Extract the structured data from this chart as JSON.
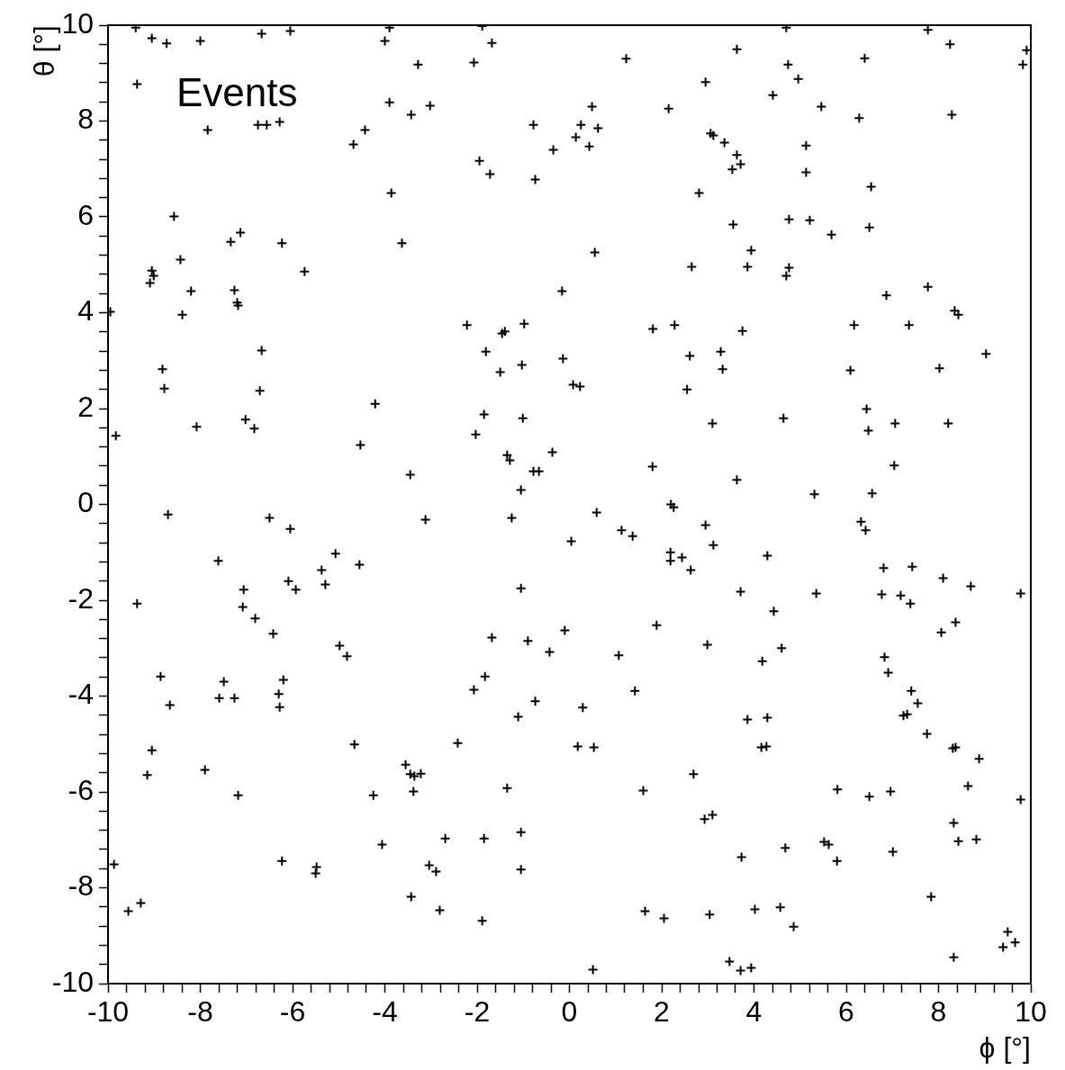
{
  "chart_data": {
    "type": "scatter",
    "title": "Events",
    "xlabel": "ϕ [°]",
    "ylabel": "θ [°]",
    "marker": "cross",
    "grid": false,
    "legend": false,
    "xlim": [
      -10,
      10
    ],
    "ylim": [
      -10,
      10
    ],
    "xticks": [
      -10,
      {
        "value": -9.6,
        "label": null
      },
      {
        "value": -9.2,
        "label": null
      },
      {
        "value": -8.8,
        "label": null
      },
      {
        "value": -8.4,
        "label": null
      },
      -8,
      {
        "value": -7.6,
        "label": null
      },
      {
        "value": -7.2,
        "label": null
      },
      {
        "value": -6.8,
        "label": null
      },
      {
        "value": -6.4,
        "label": null
      },
      -6,
      {
        "value": -5.6,
        "label": null
      },
      {
        "value": -5.2,
        "label": null
      },
      {
        "value": -4.8,
        "label": null
      },
      {
        "value": -4.4,
        "label": null
      },
      -4,
      {
        "value": -3.6,
        "label": null
      },
      {
        "value": -3.2,
        "label": null
      },
      {
        "value": -2.8,
        "label": null
      },
      {
        "value": -2.4,
        "label": null
      },
      -2,
      {
        "value": -1.6,
        "label": null
      },
      {
        "value": -1.2,
        "label": null
      },
      {
        "value": -0.8,
        "label": null
      },
      {
        "value": -0.4,
        "label": null
      },
      0,
      {
        "value": 0.4,
        "label": null
      },
      {
        "value": 0.8,
        "label": null
      },
      {
        "value": 1.2,
        "label": null
      },
      {
        "value": 1.6,
        "label": null
      },
      2,
      {
        "value": 2.4,
        "label": null
      },
      {
        "value": 2.8,
        "label": null
      },
      {
        "value": 3.2,
        "label": null
      },
      {
        "value": 3.6,
        "label": null
      },
      4,
      {
        "value": 4.4,
        "label": null
      },
      {
        "value": 4.8,
        "label": null
      },
      {
        "value": 5.2,
        "label": null
      },
      {
        "value": 5.6,
        "label": null
      },
      6,
      {
        "value": 6.4,
        "label": null
      },
      {
        "value": 6.8,
        "label": null
      },
      {
        "value": 7.2,
        "label": null
      },
      {
        "value": 7.6,
        "label": null
      },
      8,
      {
        "value": 8.4,
        "label": null
      },
      {
        "value": 8.8,
        "label": null
      },
      {
        "value": 9.2,
        "label": null
      },
      {
        "value": 9.6,
        "label": null
      },
      10
    ],
    "yticks": [
      -10,
      {
        "value": -9.6,
        "label": null
      },
      {
        "value": -9.2,
        "label": null
      },
      {
        "value": -8.8,
        "label": null
      },
      {
        "value": -8.4,
        "label": null
      },
      -8,
      {
        "value": -7.6,
        "label": null
      },
      {
        "value": -7.2,
        "label": null
      },
      {
        "value": -6.8,
        "label": null
      },
      {
        "value": -6.4,
        "label": null
      },
      -6,
      {
        "value": -5.6,
        "label": null
      },
      {
        "value": -5.2,
        "label": null
      },
      {
        "value": -4.8,
        "label": null
      },
      {
        "value": -4.4,
        "label": null
      },
      -4,
      {
        "value": -3.6,
        "label": null
      },
      {
        "value": -3.2,
        "label": null
      },
      {
        "value": -2.8,
        "label": null
      },
      {
        "value": -2.4,
        "label": null
      },
      -2,
      {
        "value": -1.6,
        "label": null
      },
      {
        "value": -1.2,
        "label": null
      },
      {
        "value": -0.8,
        "label": null
      },
      {
        "value": -0.4,
        "label": null
      },
      0,
      {
        "value": 0.4,
        "label": null
      },
      {
        "value": 0.8,
        "label": null
      },
      {
        "value": 1.2,
        "label": null
      },
      {
        "value": 1.6,
        "label": null
      },
      2,
      {
        "value": 2.4,
        "label": null
      },
      {
        "value": 2.8,
        "label": null
      },
      {
        "value": 3.2,
        "label": null
      },
      {
        "value": 3.6,
        "label": null
      },
      4,
      {
        "value": 4.4,
        "label": null
      },
      {
        "value": 4.8,
        "label": null
      },
      {
        "value": 5.2,
        "label": null
      },
      {
        "value": 5.6,
        "label": null
      },
      6,
      {
        "value": 6.4,
        "label": null
      },
      {
        "value": 6.8,
        "label": null
      },
      {
        "value": 7.2,
        "label": null
      },
      {
        "value": 7.6,
        "label": null
      },
      8,
      {
        "value": 8.4,
        "label": null
      },
      {
        "value": 8.8,
        "label": null
      },
      {
        "value": 9.2,
        "label": null
      },
      {
        "value": 9.6,
        "label": null
      },
      10
    ],
    "series": [
      {
        "color": "#000000",
        "x": [
          -9.4,
          -9.05,
          -8.73,
          -8.0,
          -6.67,
          -6.05,
          -4.0,
          -3.9,
          -3.28,
          -2.07,
          -1.89,
          -1.68,
          1.23,
          3.63,
          4.7,
          4.74,
          4.96,
          6.4,
          7.77,
          8.25,
          9.91,
          9.83,
          -9.37,
          -7.84,
          -6.75,
          -6.56,
          -6.28,
          -3.9,
          -3.43,
          -3.02,
          -4.43,
          -4.68,
          0.49,
          0.25,
          0.14,
          0.43,
          0.62,
          -0.78,
          -0.35,
          -1.95,
          -1.72,
          -0.74,
          2.15,
          2.95,
          3.06,
          3.12,
          3.36,
          3.53,
          3.63,
          3.71,
          4.41,
          5.46,
          5.13,
          5.13,
          6.28,
          8.29,
          6.54,
          4.76,
          5.21,
          2.81,
          -3.86,
          -8.57,
          -7.13,
          -7.34,
          -6.23,
          -8.43,
          -5.74,
          -9.05,
          -9.01,
          -9.09,
          -8.2,
          -7.26,
          -7.2,
          -7.18,
          -8.39,
          -9.95,
          -3.63,
          0.55,
          3.55,
          3.94,
          3.86,
          4.76,
          4.7,
          2.65,
          5.68,
          6.5,
          6.87,
          7.77,
          -0.16,
          8.35,
          8.43,
          -2.22,
          -1.46,
          -1.4,
          -0.98,
          -1.81,
          -1.5,
          -1.03,
          -0.14,
          0.08,
          0.23,
          1.81,
          2.28,
          2.61,
          2.55,
          3.28,
          3.32,
          3.75,
          6.17,
          7.36,
          6.09,
          8.02,
          9.03,
          -6.67,
          -8.82,
          -8.78,
          -6.71,
          6.44,
          6.48,
          4.64,
          7.06,
          8.21,
          3.1,
          -4.21,
          -7.02,
          -6.83,
          -8.08,
          -9.83,
          -1.85,
          -2.03,
          -1.01,
          -4.53,
          -1.35,
          -1.29,
          -0.37,
          -0.78,
          -0.66,
          -1.05,
          1.8,
          3.63,
          7.04,
          5.31,
          6.56,
          -3.45,
          2.2,
          2.26,
          -8.7,
          -6.5,
          -6.05,
          -3.12,
          -1.25,
          0.59,
          0.04,
          1.13,
          1.37,
          2.95,
          3.12,
          6.32,
          6.42,
          4.29,
          2.19,
          2.19,
          2.44,
          2.63,
          -7.61,
          -5.07,
          -5.37,
          -5.29,
          -4.55,
          -6.09,
          -5.93,
          -7.06,
          -7.08,
          -6.81,
          -6.42,
          -9.37,
          -1.05,
          3.71,
          5.35,
          6.81,
          7.43,
          6.77,
          7.18,
          7.39,
          8.1,
          8.7,
          9.78,
          8.37,
          8.06,
          4.43,
          1.89,
          -0.1,
          -4.98,
          -4.82,
          -1.68,
          -0.9,
          -0.43,
          1.07,
          1.42,
          2.99,
          4.18,
          4.6,
          6.83,
          6.91,
          7.41,
          7.55,
          7.32,
          7.24,
          7.75,
          8.31,
          8.37,
          8.88,
          -8.86,
          -8.66,
          -7.49,
          -7.59,
          -7.26,
          -6.2,
          -6.3,
          -6.28,
          -1.83,
          -2.07,
          -0.74,
          0.29,
          -1.11,
          3.86,
          4.29,
          4.16,
          4.27,
          -9.05,
          -9.15,
          -7.9,
          -4.66,
          -2.42,
          0.18,
          0.53,
          -3.55,
          -3.45,
          -3.36,
          -3.22,
          -3.38,
          -1.35,
          -7.18,
          -4.25,
          1.6,
          2.69,
          5.81,
          6.5,
          6.96,
          8.64,
          9.78,
          2.93,
          3.1,
          8.33,
          8.43,
          8.82,
          5.52,
          5.62,
          5.8,
          7.01,
          4.68,
          3.73,
          -1.05,
          -1.85,
          -2.69,
          -4.06,
          -6.23,
          -5.48,
          -5.5,
          -3.04,
          -2.89,
          -1.05,
          -9.87,
          -9.56,
          -9.29,
          -3.43,
          -2.81,
          -1.89,
          1.64,
          2.05,
          3.04,
          4.02,
          4.57,
          4.86,
          7.84,
          8.33,
          9.5,
          9.4,
          9.66,
          3.47,
          3.71,
          3.94,
          0.51
        ],
        "values": [
          9.95,
          9.73,
          9.62,
          9.67,
          9.82,
          9.88,
          9.67,
          9.95,
          9.18,
          9.22,
          9.98,
          9.63,
          9.3,
          9.5,
          9.95,
          9.18,
          8.88,
          9.31,
          9.9,
          9.6,
          9.48,
          9.18,
          8.77,
          7.81,
          7.92,
          7.92,
          7.98,
          8.39,
          8.13,
          8.32,
          7.81,
          7.51,
          8.3,
          7.92,
          7.66,
          7.47,
          7.85,
          7.92,
          7.4,
          7.17,
          6.89,
          6.78,
          8.26,
          8.81,
          7.74,
          7.7,
          7.55,
          6.99,
          7.29,
          7.1,
          8.54,
          8.3,
          7.49,
          6.93,
          8.06,
          8.13,
          6.63,
          5.95,
          5.93,
          6.5,
          6.5,
          6.01,
          5.67,
          5.48,
          5.45,
          5.11,
          4.86,
          4.88,
          4.77,
          4.62,
          4.45,
          4.47,
          4.21,
          4.15,
          3.96,
          4.02,
          5.45,
          5.26,
          5.84,
          5.3,
          4.96,
          4.94,
          4.77,
          4.96,
          5.63,
          5.78,
          4.36,
          4.54,
          4.45,
          4.04,
          3.96,
          3.74,
          3.57,
          3.61,
          3.77,
          3.19,
          2.76,
          2.91,
          3.04,
          2.5,
          2.46,
          3.66,
          3.74,
          3.1,
          2.4,
          3.19,
          2.82,
          3.62,
          3.74,
          3.74,
          2.8,
          2.84,
          3.14,
          3.21,
          2.82,
          2.42,
          2.37,
          1.99,
          1.54,
          1.8,
          1.69,
          1.69,
          1.69,
          2.1,
          1.77,
          1.58,
          1.62,
          1.43,
          1.88,
          1.46,
          1.8,
          1.24,
          1.03,
          0.92,
          1.09,
          0.69,
          0.69,
          0.3,
          0.79,
          0.51,
          0.81,
          0.21,
          0.23,
          0.62,
          0.0,
          -0.06,
          -0.21,
          -0.28,
          -0.51,
          -0.32,
          -0.28,
          -0.17,
          -0.77,
          -0.54,
          -0.66,
          -0.43,
          -0.85,
          -0.36,
          -0.54,
          -1.07,
          -1.0,
          -1.18,
          -1.11,
          -1.37,
          -1.18,
          -1.03,
          -1.37,
          -1.67,
          -1.26,
          -1.6,
          -1.78,
          -1.78,
          -2.14,
          -2.38,
          -2.7,
          -2.07,
          -1.75,
          -1.82,
          -1.86,
          -1.33,
          -1.3,
          -1.88,
          -1.9,
          -2.07,
          -1.54,
          -1.71,
          -1.86,
          -2.46,
          -2.67,
          -2.23,
          -2.52,
          -2.63,
          -2.95,
          -3.17,
          -2.78,
          -2.85,
          -3.08,
          -3.15,
          -3.89,
          -2.93,
          -3.27,
          -3.0,
          -3.19,
          -3.51,
          -3.89,
          -4.15,
          -4.38,
          -4.41,
          -4.79,
          -5.09,
          -5.07,
          -5.31,
          -3.59,
          -4.19,
          -3.7,
          -4.04,
          -4.04,
          -3.66,
          -3.96,
          -4.23,
          -3.59,
          -3.87,
          -4.11,
          -4.24,
          -4.43,
          -4.49,
          -4.45,
          -5.07,
          -5.05,
          -5.13,
          -5.65,
          -5.54,
          -5.01,
          -4.98,
          -5.05,
          -5.07,
          -5.43,
          -5.63,
          -5.67,
          -5.62,
          -5.99,
          -5.92,
          -6.07,
          -6.07,
          -5.97,
          -5.63,
          -5.95,
          -6.1,
          -5.99,
          -5.88,
          -6.16,
          -6.57,
          -6.48,
          -6.65,
          -7.03,
          -6.99,
          -7.04,
          -7.1,
          -7.44,
          -7.25,
          -7.17,
          -7.36,
          -6.84,
          -6.97,
          -6.97,
          -7.1,
          -7.44,
          -7.57,
          -7.7,
          -7.53,
          -7.66,
          -7.62,
          -7.51,
          -8.49,
          -8.32,
          -8.19,
          -8.47,
          -8.69,
          -8.49,
          -8.64,
          -8.56,
          -8.45,
          -8.41,
          -8.81,
          -8.19,
          -9.45,
          -8.92,
          -9.24,
          -9.14,
          -9.54,
          -9.73,
          -9.67,
          -9.71
        ]
      }
    ]
  }
}
